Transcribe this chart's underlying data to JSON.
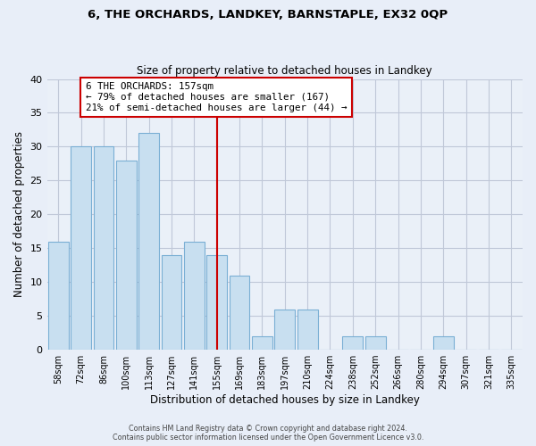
{
  "title": "6, THE ORCHARDS, LANDKEY, BARNSTAPLE, EX32 0QP",
  "subtitle": "Size of property relative to detached houses in Landkey",
  "xlabel": "Distribution of detached houses by size in Landkey",
  "ylabel": "Number of detached properties",
  "bin_labels": [
    "58sqm",
    "72sqm",
    "86sqm",
    "100sqm",
    "113sqm",
    "127sqm",
    "141sqm",
    "155sqm",
    "169sqm",
    "183sqm",
    "197sqm",
    "210sqm",
    "224sqm",
    "238sqm",
    "252sqm",
    "266sqm",
    "280sqm",
    "294sqm",
    "307sqm",
    "321sqm",
    "335sqm"
  ],
  "bar_heights": [
    16,
    30,
    30,
    28,
    32,
    14,
    16,
    14,
    11,
    2,
    6,
    6,
    0,
    2,
    2,
    0,
    0,
    2,
    0,
    0,
    0
  ],
  "bar_color": "#c8dff0",
  "bar_edge_color": "#7aafd4",
  "vline_index": 7,
  "vline_color": "#cc0000",
  "annotation_text": "6 THE ORCHARDS: 157sqm\n← 79% of detached houses are smaller (167)\n21% of semi-detached houses are larger (44) →",
  "annotation_box_color": "#ffffff",
  "annotation_box_edge": "#cc0000",
  "ylim": [
    0,
    40
  ],
  "yticks": [
    0,
    5,
    10,
    15,
    20,
    25,
    30,
    35,
    40
  ],
  "footer_line1": "Contains HM Land Registry data © Crown copyright and database right 2024.",
  "footer_line2": "Contains public sector information licensed under the Open Government Licence v3.0.",
  "bg_color": "#e8eef8",
  "plot_bg_color": "#eaf0f8",
  "grid_color": "#c0c8d8"
}
